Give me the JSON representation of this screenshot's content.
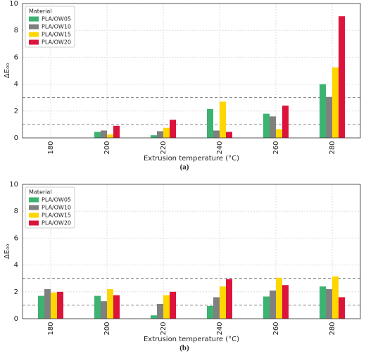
{
  "chart_data": [
    {
      "type": "bar",
      "caption": "(a)",
      "xlabel": "Extrusion temperature (°C)",
      "ylabel": "ΔE₀₀",
      "categories": [
        "180",
        "200",
        "220",
        "240",
        "260",
        "280"
      ],
      "legend_title": "Material",
      "legend": "upper left",
      "grid": true,
      "reference_lines": [
        1,
        3
      ],
      "ylim": [
        0,
        10
      ],
      "yticks": [
        0,
        2,
        4,
        6,
        8,
        10
      ],
      "series": [
        {
          "name": "PLA/OW05",
          "color": "#3cb371",
          "values": [
            0,
            0.45,
            0.2,
            2.15,
            1.8,
            4.0
          ]
        },
        {
          "name": "PLA/OW10",
          "color": "#808080",
          "values": [
            0,
            0.55,
            0.5,
            0.55,
            1.6,
            3.05
          ]
        },
        {
          "name": "PLA/OW15",
          "color": "#ffd700",
          "values": [
            0,
            0.25,
            0.75,
            2.7,
            0.65,
            5.25
          ]
        },
        {
          "name": "PLA/OW20",
          "color": "#dc143c",
          "values": [
            0,
            0.9,
            1.35,
            0.45,
            2.4,
            9.05
          ]
        }
      ]
    },
    {
      "type": "bar",
      "caption": "(b)",
      "xlabel": "Extrusion temperature (°C)",
      "ylabel": "ΔE₀₀",
      "categories": [
        "180",
        "200",
        "220",
        "240",
        "260",
        "280"
      ],
      "legend_title": "Material",
      "legend": "upper left",
      "grid": true,
      "reference_lines": [
        1,
        3
      ],
      "ylim": [
        0,
        10
      ],
      "yticks": [
        0,
        2,
        4,
        6,
        8,
        10
      ],
      "series": [
        {
          "name": "PLA/OW05",
          "color": "#3cb371",
          "values": [
            1.7,
            1.7,
            0.25,
            0.95,
            1.65,
            2.4
          ]
        },
        {
          "name": "PLA/OW10",
          "color": "#808080",
          "values": [
            2.2,
            1.3,
            1.1,
            1.6,
            2.1,
            2.2
          ]
        },
        {
          "name": "PLA/OW15",
          "color": "#ffd700",
          "values": [
            1.95,
            2.2,
            1.75,
            2.4,
            3.05,
            3.15
          ]
        },
        {
          "name": "PLA/OW20",
          "color": "#dc143c",
          "values": [
            2.0,
            1.75,
            2.0,
            2.95,
            2.5,
            1.6
          ]
        }
      ]
    }
  ]
}
